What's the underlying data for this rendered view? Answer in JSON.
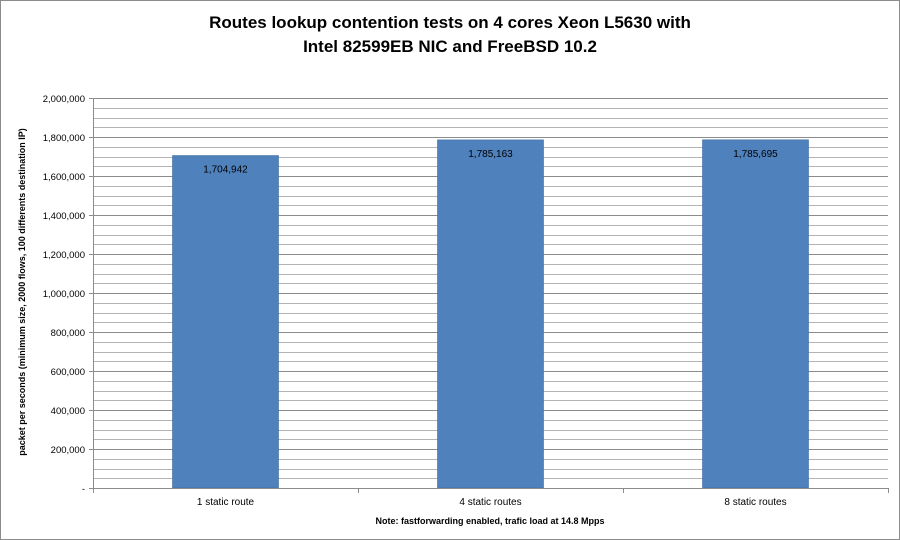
{
  "chart_data": {
    "type": "bar",
    "title_lines": [
      "Routes lookup contention tests on 4 cores Xeon L5630 with",
      "Intel 82599EB NIC and FreeBSD 10.2"
    ],
    "categories": [
      "1 static route",
      "4 static routes",
      "8 static routes"
    ],
    "values": [
      1704942,
      1785163,
      1785695
    ],
    "data_labels": [
      "1,704,942",
      "1,785,163",
      "1,785,695"
    ],
    "xlabel": "Note: fastforwarding enabled, trafic load at 14.8 Mpps",
    "ylabel": "packet per seconds (minimum size, 2000 flows, 100 differents destination IP)",
    "ylim": [
      0,
      2000000
    ],
    "y_ticks": [
      0,
      200000,
      400000,
      600000,
      800000,
      1000000,
      1200000,
      1400000,
      1600000,
      1800000,
      2000000
    ],
    "y_tick_labels": [
      "-",
      "200,000",
      "400,000",
      "600,000",
      "800,000",
      "1,000,000",
      "1,200,000",
      "1,400,000",
      "1,600,000",
      "1,800,000",
      "2,000,000"
    ],
    "bar_color": "#4f81bd",
    "grid": true,
    "legend": "none"
  }
}
